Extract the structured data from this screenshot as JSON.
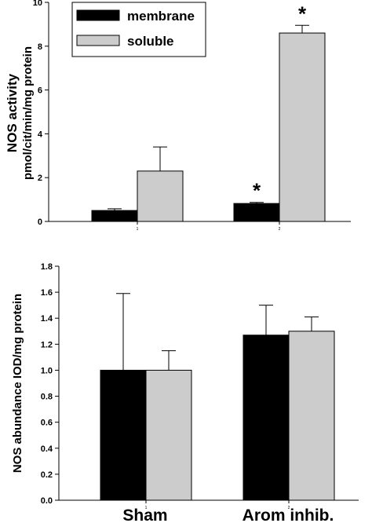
{
  "chart_data": [
    {
      "type": "bar",
      "categories": [
        "",
        ""
      ],
      "ylabel_line1": "NOS activity",
      "ylabel_line2": "pmol/cit/min/mg protein",
      "ylim": [
        0,
        10
      ],
      "yticks": [
        "0",
        "2",
        "4",
        "6",
        "8",
        "10"
      ],
      "xticks": [
        "1",
        "2"
      ],
      "legend": {
        "placement": "top-left"
      },
      "series": [
        {
          "name": "membrane",
          "color": "#000000",
          "values": [
            0.5,
            0.82
          ],
          "errors": [
            0.08,
            0.05
          ],
          "significance": [
            "",
            "*"
          ]
        },
        {
          "name": "soluble",
          "color": "#cccccc",
          "values": [
            2.3,
            8.6
          ],
          "errors": [
            1.1,
            0.35
          ],
          "significance": [
            "",
            "*"
          ]
        }
      ]
    },
    {
      "type": "bar",
      "categories": [
        "Sham",
        "Arom inhib."
      ],
      "ylabel": "NOS abundance IOD/mg protein",
      "ylim": [
        0,
        1.8
      ],
      "yticks": [
        "0.0",
        "0.2",
        "0.4",
        "0.6",
        "0.8",
        "1.0",
        "1.2",
        "1.4",
        "1.6",
        "1.8"
      ],
      "xticks": [
        "1",
        "2"
      ],
      "series": [
        {
          "name": "membrane",
          "color": "#000000",
          "values": [
            1.0,
            1.27
          ],
          "errors": [
            0.59,
            0.23
          ]
        },
        {
          "name": "soluble",
          "color": "#cccccc",
          "values": [
            1.0,
            1.3
          ],
          "errors": [
            0.15,
            0.11
          ]
        }
      ]
    }
  ]
}
